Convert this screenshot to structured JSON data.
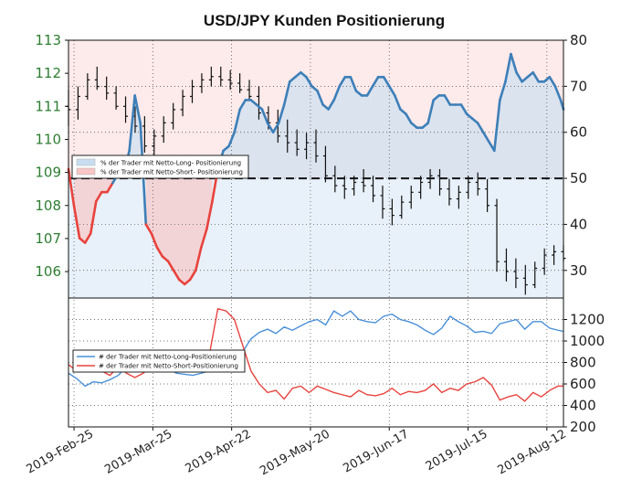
{
  "chart_data": [
    {
      "type": "line",
      "title": "USD/JPY Kunden Positionierung",
      "x_tick_labels": [
        "2019-Feb-25",
        "2019-Mar-25",
        "2019-Apr-22",
        "2019-May-20",
        "2019-Jun-17",
        "2019-Jul-15",
        "2019-Aug-12"
      ],
      "x_range": [
        "2019-Feb-25",
        "2019-Aug-23"
      ],
      "left_axis": {
        "ylim": [
          105.2,
          113
        ],
        "ticks": [
          "106",
          "107",
          "108",
          "109",
          "110",
          "111",
          "112",
          "113"
        ],
        "color": "#2e7d32"
      },
      "right_axis": {
        "ylim": [
          24,
          80
        ],
        "ticks": [
          "30",
          "40",
          "50",
          "60",
          "70",
          "80"
        ]
      },
      "reference_line": {
        "axis": "right",
        "value": 50,
        "style": "dashed"
      },
      "legend": {
        "placement": "left-middle",
        "entries": [
          {
            "label": "% der Trader mit Netto-Long- Positionierung",
            "color": "#c8def0"
          },
          {
            "label": "% der Trader mit Netto-Short- Positionierung",
            "color": "#f8c6c6"
          }
        ]
      },
      "series": [
        {
          "axis": "right",
          "color_long": "#3d7fb8",
          "color_short": "#e8433e",
          "x": [
            0,
            2,
            4,
            6,
            8,
            10,
            12,
            14,
            16,
            18,
            20,
            22,
            24,
            26,
            28,
            30,
            32,
            34,
            36,
            38,
            40,
            42,
            44,
            46,
            48,
            50,
            52,
            54,
            56,
            58,
            60,
            62,
            64,
            66,
            68,
            70,
            72,
            74,
            76,
            78,
            80,
            82,
            84,
            86,
            88,
            90,
            92,
            94,
            96,
            98,
            100,
            102,
            104,
            106,
            108,
            110,
            112,
            114,
            116,
            118,
            120,
            122,
            124,
            126,
            128,
            130,
            132,
            134,
            136,
            138,
            140,
            142,
            144,
            146,
            148,
            150,
            152,
            154,
            156,
            158,
            160,
            162,
            164,
            166,
            168,
            170,
            172,
            174,
            176,
            178,
            179
          ],
          "y": [
            52,
            44,
            37,
            36,
            38,
            45,
            47,
            47,
            49,
            51,
            51,
            56,
            68,
            62,
            40,
            38,
            35,
            33,
            32,
            30,
            28,
            27,
            28,
            30,
            35,
            39,
            45,
            52,
            56,
            57,
            60,
            65,
            67,
            67,
            66,
            65,
            62,
            60,
            62,
            66,
            71,
            72,
            73,
            72,
            70,
            69,
            66,
            65,
            67,
            70,
            72,
            72,
            69,
            68,
            68,
            70,
            72,
            72,
            70,
            68,
            65,
            64,
            62,
            61,
            61,
            62,
            67,
            68,
            68,
            66,
            66,
            66,
            64,
            63,
            62,
            60,
            58,
            56,
            67,
            71,
            77,
            73,
            71,
            72,
            73,
            71,
            71,
            72,
            70,
            67,
            65
          ]
        }
      ],
      "ohlc_bars": [
        {
          "o": 111.0,
          "h": 111.5,
          "l": 110.4,
          "c": 110.9
        },
        {
          "o": 110.9,
          "h": 111.6,
          "l": 110.6,
          "c": 111.3
        },
        {
          "o": 111.3,
          "h": 112.0,
          "l": 111.2,
          "c": 111.8
        },
        {
          "o": 111.8,
          "h": 112.2,
          "l": 111.5,
          "c": 111.6
        },
        {
          "o": 111.6,
          "h": 111.9,
          "l": 111.2,
          "c": 111.4
        },
        {
          "o": 111.4,
          "h": 111.6,
          "l": 110.9,
          "c": 111.0
        },
        {
          "o": 111.0,
          "h": 111.3,
          "l": 110.5,
          "c": 110.7
        },
        {
          "o": 110.7,
          "h": 111.0,
          "l": 110.2,
          "c": 110.4
        },
        {
          "o": 110.4,
          "h": 110.7,
          "l": 109.6,
          "c": 109.8
        },
        {
          "o": 109.8,
          "h": 110.3,
          "l": 109.4,
          "c": 110.1
        },
        {
          "o": 110.1,
          "h": 110.7,
          "l": 109.9,
          "c": 110.5
        },
        {
          "o": 110.5,
          "h": 111.1,
          "l": 110.3,
          "c": 110.9
        },
        {
          "o": 110.9,
          "h": 111.5,
          "l": 110.7,
          "c": 111.3
        },
        {
          "o": 111.3,
          "h": 111.8,
          "l": 111.1,
          "c": 111.6
        },
        {
          "o": 111.6,
          "h": 112.0,
          "l": 111.4,
          "c": 111.8
        },
        {
          "o": 111.8,
          "h": 112.2,
          "l": 111.6,
          "c": 111.9
        },
        {
          "o": 111.9,
          "h": 112.2,
          "l": 111.6,
          "c": 111.8
        },
        {
          "o": 111.8,
          "h": 112.1,
          "l": 111.5,
          "c": 111.7
        },
        {
          "o": 111.7,
          "h": 112.0,
          "l": 111.4,
          "c": 111.5
        },
        {
          "o": 111.5,
          "h": 111.8,
          "l": 111.2,
          "c": 111.3
        },
        {
          "o": 111.3,
          "h": 111.6,
          "l": 110.6,
          "c": 110.8
        },
        {
          "o": 110.8,
          "h": 111.0,
          "l": 110.3,
          "c": 110.5
        },
        {
          "o": 110.5,
          "h": 110.9,
          "l": 109.9,
          "c": 110.1
        },
        {
          "o": 110.1,
          "h": 110.6,
          "l": 109.6,
          "c": 109.9
        },
        {
          "o": 109.9,
          "h": 110.3,
          "l": 109.5,
          "c": 109.7
        },
        {
          "o": 109.7,
          "h": 110.2,
          "l": 109.4,
          "c": 109.9
        },
        {
          "o": 109.9,
          "h": 110.3,
          "l": 109.3,
          "c": 109.5
        },
        {
          "o": 109.5,
          "h": 109.8,
          "l": 108.7,
          "c": 108.9
        },
        {
          "o": 108.9,
          "h": 109.2,
          "l": 108.4,
          "c": 108.6
        },
        {
          "o": 108.6,
          "h": 108.9,
          "l": 108.2,
          "c": 108.5
        },
        {
          "o": 108.5,
          "h": 108.9,
          "l": 108.3,
          "c": 108.7
        },
        {
          "o": 108.7,
          "h": 109.1,
          "l": 108.4,
          "c": 108.6
        },
        {
          "o": 108.6,
          "h": 108.9,
          "l": 108.1,
          "c": 108.3
        },
        {
          "o": 108.3,
          "h": 108.6,
          "l": 107.6,
          "c": 107.9
        },
        {
          "o": 107.9,
          "h": 108.2,
          "l": 107.4,
          "c": 107.7
        },
        {
          "o": 107.7,
          "h": 108.3,
          "l": 107.6,
          "c": 108.1
        },
        {
          "o": 108.1,
          "h": 108.6,
          "l": 107.9,
          "c": 108.4
        },
        {
          "o": 108.4,
          "h": 108.9,
          "l": 108.2,
          "c": 108.7
        },
        {
          "o": 108.7,
          "h": 109.1,
          "l": 108.5,
          "c": 108.9
        },
        {
          "o": 108.9,
          "h": 109.1,
          "l": 108.3,
          "c": 108.5
        },
        {
          "o": 108.5,
          "h": 108.8,
          "l": 108.0,
          "c": 108.2
        },
        {
          "o": 108.2,
          "h": 108.6,
          "l": 107.9,
          "c": 108.4
        },
        {
          "o": 108.4,
          "h": 108.9,
          "l": 108.2,
          "c": 108.7
        },
        {
          "o": 108.7,
          "h": 109.0,
          "l": 108.3,
          "c": 108.5
        },
        {
          "o": 108.5,
          "h": 108.8,
          "l": 107.8,
          "c": 108.0
        },
        {
          "o": 108.0,
          "h": 108.2,
          "l": 106.0,
          "c": 106.3
        },
        {
          "o": 106.3,
          "h": 106.7,
          "l": 105.7,
          "c": 106.0
        },
        {
          "o": 106.0,
          "h": 106.4,
          "l": 105.5,
          "c": 105.8
        },
        {
          "o": 105.8,
          "h": 106.2,
          "l": 105.3,
          "c": 105.6
        },
        {
          "o": 105.6,
          "h": 106.3,
          "l": 105.5,
          "c": 106.1
        },
        {
          "o": 106.1,
          "h": 106.7,
          "l": 105.9,
          "c": 106.5
        },
        {
          "o": 106.5,
          "h": 106.8,
          "l": 106.2,
          "c": 106.6
        },
        {
          "o": 106.6,
          "h": 106.8,
          "l": 106.3,
          "c": 106.4
        }
      ]
    },
    {
      "type": "line",
      "right_axis": {
        "ylim": [
          200,
          1400
        ],
        "ticks": [
          "200",
          "400",
          "600",
          "800",
          "1000",
          "1200"
        ]
      },
      "legend": {
        "placement": "left-middle",
        "entries": [
          {
            "label": "# der Trader mit Netto-Long-Positionierung",
            "color": "#4a90d9"
          },
          {
            "label": "# der Trader mit Netto-Short-Positionierung",
            "color": "#e8433e"
          }
        ]
      },
      "series": [
        {
          "name": "long",
          "color": "#4a90d9",
          "x": [
            0,
            3,
            6,
            9,
            12,
            15,
            18,
            21,
            24,
            27,
            30,
            33,
            36,
            39,
            42,
            45,
            48,
            51,
            54,
            57,
            60,
            63,
            66,
            69,
            72,
            75,
            78,
            81,
            84,
            87,
            90,
            93,
            96,
            99,
            102,
            105,
            108,
            111,
            114,
            117,
            120,
            123,
            126,
            129,
            132,
            135,
            138,
            141,
            144,
            147,
            150,
            153,
            156,
            159,
            162,
            165,
            168,
            171,
            174,
            177,
            179
          ],
          "y": [
            700,
            650,
            580,
            620,
            610,
            640,
            680,
            760,
            800,
            820,
            790,
            760,
            740,
            700,
            690,
            680,
            700,
            720,
            760,
            780,
            720,
            900,
            1020,
            1080,
            1110,
            1070,
            1130,
            1100,
            1140,
            1180,
            1200,
            1150,
            1280,
            1230,
            1280,
            1200,
            1180,
            1170,
            1230,
            1250,
            1200,
            1180,
            1150,
            1100,
            1060,
            1120,
            1230,
            1180,
            1140,
            1080,
            1090,
            1070,
            1160,
            1180,
            1200,
            1110,
            1180,
            1180,
            1120,
            1100,
            1090
          ]
        },
        {
          "name": "short",
          "color": "#e8433e",
          "x": [
            0,
            3,
            6,
            9,
            12,
            15,
            18,
            21,
            24,
            27,
            30,
            33,
            36,
            39,
            42,
            45,
            48,
            51,
            54,
            57,
            60,
            63,
            66,
            69,
            72,
            75,
            78,
            81,
            84,
            87,
            90,
            93,
            96,
            99,
            102,
            105,
            108,
            111,
            114,
            117,
            120,
            123,
            126,
            129,
            132,
            135,
            138,
            141,
            144,
            147,
            150,
            153,
            156,
            159,
            162,
            165,
            168,
            171,
            174,
            177,
            179
          ],
          "y": [
            780,
            720,
            740,
            750,
            720,
            680,
            760,
            700,
            660,
            700,
            760,
            900,
            800,
            780,
            800,
            820,
            810,
            880,
            1300,
            1280,
            1200,
            960,
            720,
            600,
            520,
            540,
            460,
            560,
            580,
            520,
            580,
            550,
            520,
            500,
            480,
            540,
            500,
            490,
            510,
            560,
            500,
            530,
            520,
            540,
            600,
            520,
            560,
            540,
            600,
            620,
            660,
            590,
            450,
            480,
            500,
            440,
            520,
            480,
            540,
            580,
            580
          ]
        }
      ]
    }
  ]
}
